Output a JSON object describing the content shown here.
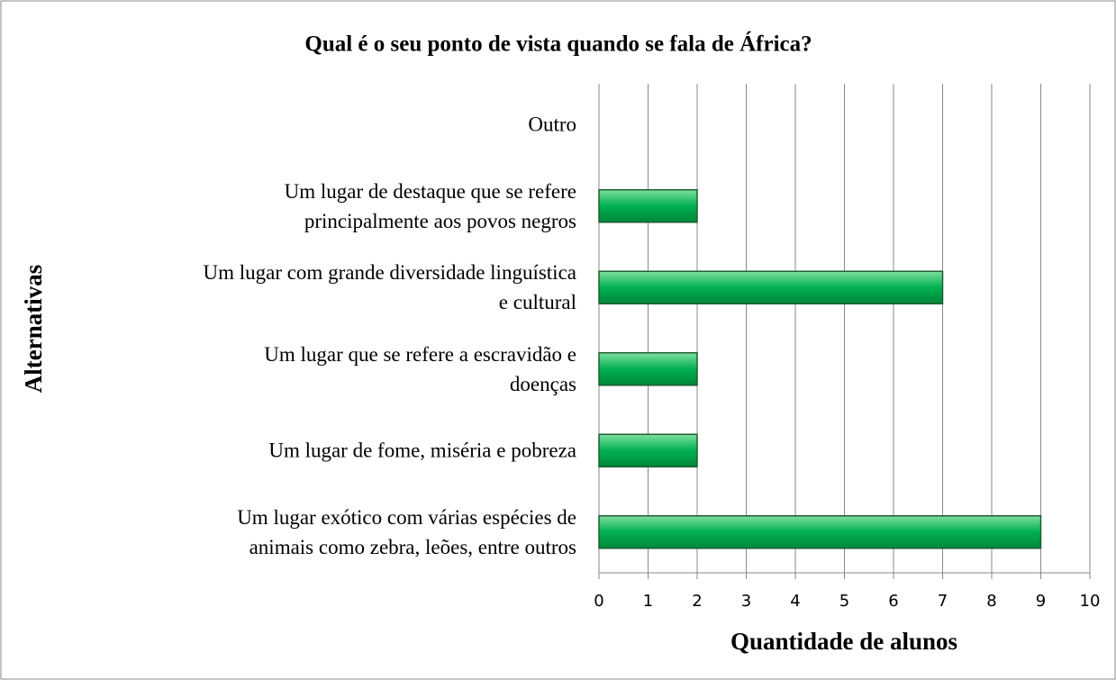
{
  "chart_data": {
    "type": "hbar",
    "title": "Qual é o seu ponto de vista quando se fala de África?",
    "xlabel": "Quantidade de alunos",
    "ylabel": "Alternativas",
    "categories": [
      "Um lugar exótico com várias espécies de\nanimais como zebra, leões, entre outros",
      "Um lugar de fome, miséria e pobreza",
      "Um lugar que se refere a escravidão e\ndoenças",
      "Um lugar com grande diversidade linguística\ne cultural",
      "Um lugar de destaque que se refere\nprincipalmente aos povos negros",
      "Outro"
    ],
    "values": [
      9,
      2,
      2,
      7,
      2,
      0
    ],
    "color": "#00b050",
    "xlim": [
      0,
      10
    ],
    "xticks": [
      0,
      1,
      2,
      3,
      4,
      5,
      6,
      7,
      8,
      9,
      10
    ],
    "grid": true
  }
}
